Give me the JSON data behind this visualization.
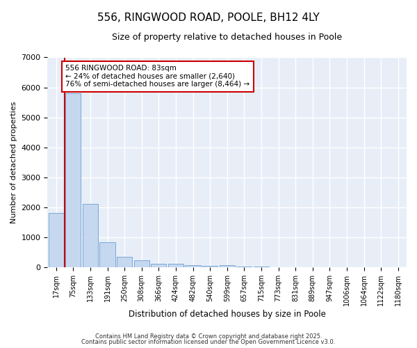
{
  "title": "556, RINGWOOD ROAD, POOLE, BH12 4LY",
  "subtitle": "Size of property relative to detached houses in Poole",
  "xlabel": "Distribution of detached houses by size in Poole",
  "ylabel": "Number of detached properties",
  "bar_labels": [
    "17sqm",
    "75sqm",
    "133sqm",
    "191sqm",
    "250sqm",
    "308sqm",
    "366sqm",
    "424sqm",
    "482sqm",
    "540sqm",
    "599sqm",
    "657sqm",
    "715sqm",
    "773sqm",
    "831sqm",
    "889sqm",
    "947sqm",
    "1006sqm",
    "1064sqm",
    "1122sqm",
    "1180sqm"
  ],
  "bar_values": [
    1800,
    5800,
    2100,
    820,
    350,
    230,
    110,
    110,
    60,
    50,
    60,
    15,
    15,
    5,
    5,
    5,
    5,
    5,
    5,
    5,
    5
  ],
  "bar_color": "#c5d8f0",
  "bar_edge_color": "#7aa8d4",
  "ylim": [
    0,
    7000
  ],
  "yticks": [
    0,
    1000,
    2000,
    3000,
    4000,
    5000,
    6000,
    7000
  ],
  "red_line_x": 0.5,
  "red_line_color": "#cc0000",
  "annotation_title": "556 RINGWOOD ROAD: 83sqm",
  "annotation_line1": "← 24% of detached houses are smaller (2,640)",
  "annotation_line2": "76% of semi-detached houses are larger (8,464) →",
  "annotation_box_color": "#cc0000",
  "annotation_box_facecolor": "white",
  "footer_line1": "Contains HM Land Registry data © Crown copyright and database right 2025.",
  "footer_line2": "Contains public sector information licensed under the Open Government Licence v3.0.",
  "bg_color": "#ffffff",
  "plot_bg_color": "#e8eef8",
  "grid_color": "#ffffff",
  "figsize": [
    6.0,
    5.0
  ],
  "dpi": 100
}
